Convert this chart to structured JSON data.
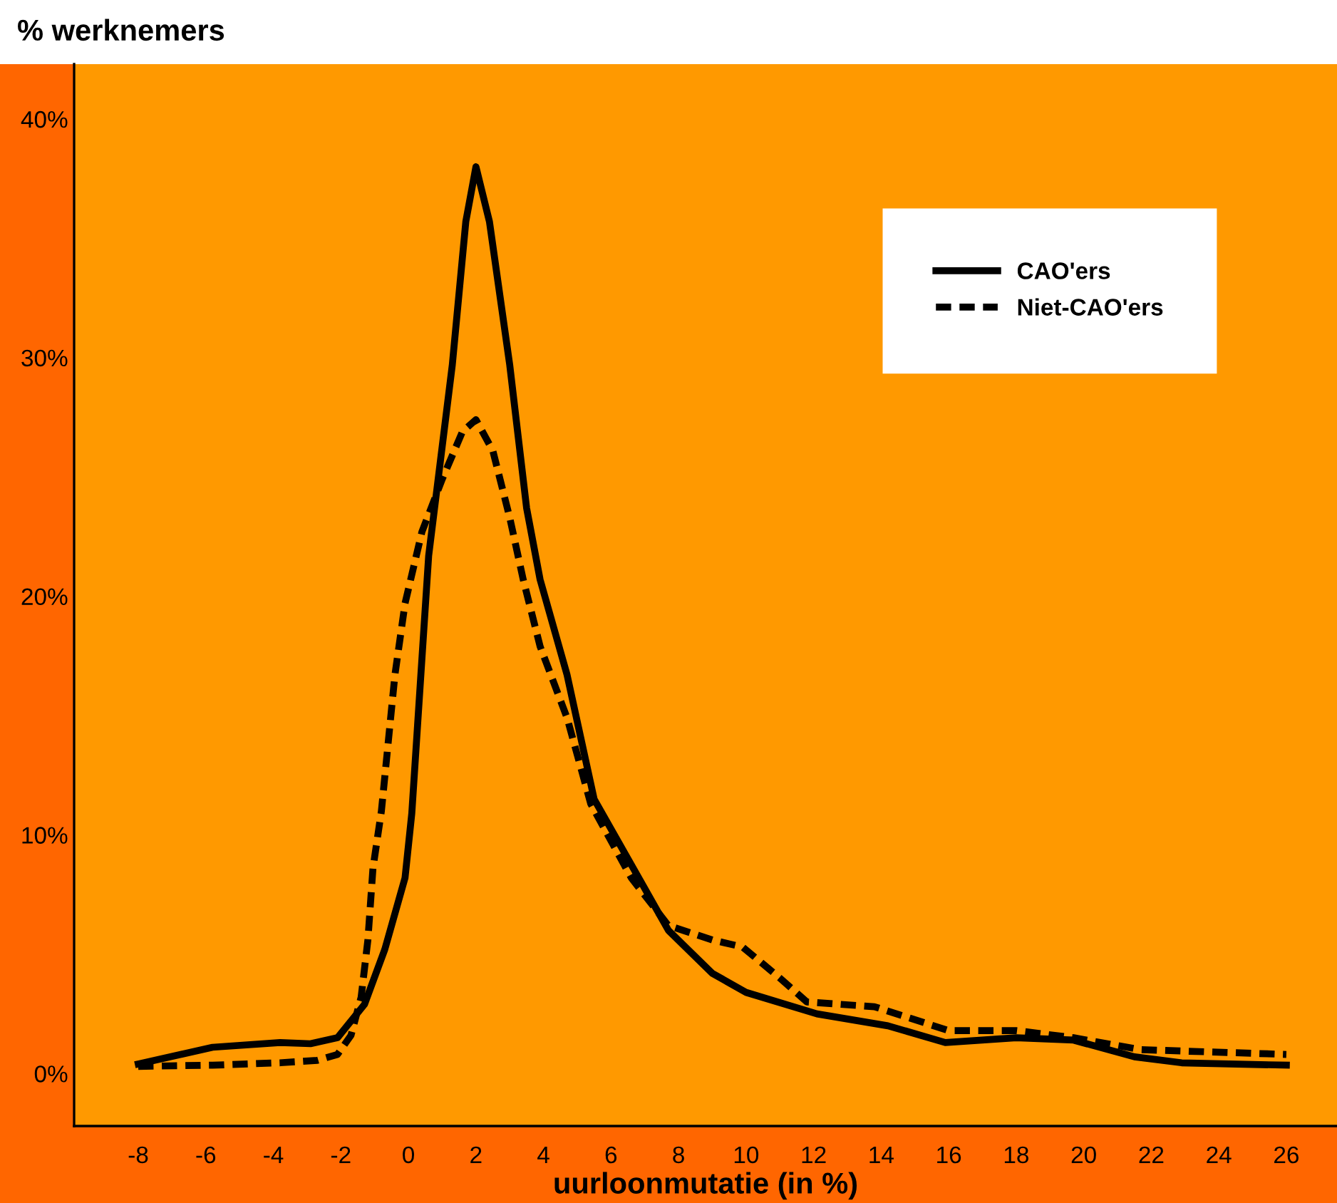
{
  "chart_data": {
    "type": "line",
    "title": "% werknemers",
    "xlabel": "uurloonmutatie (in %)",
    "xlim": [
      -9.9,
      27.5
    ],
    "ylim": [
      -2.2,
      42.3
    ],
    "xticks": [
      -8,
      -6,
      -4,
      -2,
      0,
      2,
      4,
      6,
      8,
      10,
      12,
      14,
      16,
      18,
      20,
      22,
      24,
      26
    ],
    "yticks": [
      {
        "value": 0,
        "label": "0%"
      },
      {
        "value": 10,
        "label": "10%"
      },
      {
        "value": 20,
        "label": "20%"
      },
      {
        "value": 30,
        "label": "30%"
      },
      {
        "value": 40,
        "label": "40%"
      }
    ],
    "grid": false,
    "legend": "top right",
    "marker": "none",
    "series": [
      {
        "name": "CAO'ers",
        "color": "#000000",
        "line_style": "solid",
        "x": [
          -8,
          -5.8,
          -3.8,
          -2.9,
          -2.1,
          -1.3,
          -0.7,
          -0.1,
          0.1,
          0.6,
          1.3,
          1.7,
          2.0,
          2.4,
          3.0,
          3.5,
          3.9,
          4.7,
          5.5,
          6.9,
          7.7,
          9.0,
          10.0,
          12.1,
          14.2,
          15.9,
          18.0,
          19.7,
          21.5,
          22.9,
          26.0
        ],
        "values": [
          0.4,
          1.1,
          1.3,
          1.25,
          1.5,
          2.9,
          5.2,
          8.2,
          10.9,
          21.7,
          29.7,
          35.7,
          38.0,
          35.7,
          29.7,
          23.7,
          20.7,
          16.7,
          11.5,
          8.0,
          6.0,
          4.2,
          3.4,
          2.5,
          2.0,
          1.3,
          1.5,
          1.4,
          0.7,
          0.45,
          0.35
        ]
      },
      {
        "name": "Niet-CAO'ers",
        "color": "#000000",
        "line_style": "dashed",
        "x": [
          -8,
          -5.8,
          -3.8,
          -2.7,
          -2.1,
          -1.7,
          -1.4,
          -1.2,
          -1.05,
          -0.8,
          -0.4,
          -0.1,
          0.4,
          1.0,
          1.6,
          2.0,
          2.5,
          3.0,
          3.4,
          3.9,
          4.7,
          5.4,
          6.6,
          7.7,
          9.0,
          9.9,
          11.0,
          11.8,
          13.8,
          16.0,
          18.0,
          19.7,
          21.7,
          26.0
        ],
        "values": [
          0.3,
          0.35,
          0.45,
          0.55,
          0.8,
          1.6,
          3.2,
          5.6,
          8.6,
          11.0,
          16.7,
          19.7,
          22.7,
          24.9,
          26.9,
          27.4,
          26.1,
          23.3,
          20.7,
          17.9,
          14.9,
          11.3,
          8.2,
          6.2,
          5.6,
          5.3,
          4.0,
          3.0,
          2.8,
          1.8,
          1.8,
          1.5,
          1.0,
          0.8
        ]
      }
    ]
  }
}
